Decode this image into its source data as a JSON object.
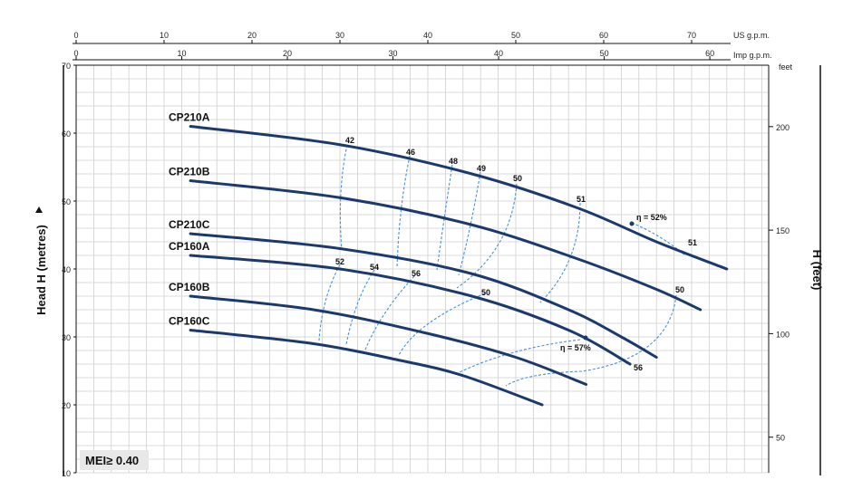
{
  "chart_data": {
    "type": "line",
    "ylabel_left": "Head H (metres)",
    "ylabel_right": "H (feet)",
    "top_axis_1_unit": "US g.p.m.",
    "top_axis_2_unit": "Imp g.p.m.",
    "right_axis_unit": "feet",
    "mei_label": "MEI≥ 0.40",
    "ylim": [
      10,
      70
    ],
    "y_ticks": [
      10,
      20,
      30,
      40,
      50,
      60,
      70
    ],
    "us_gpm_lim": [
      0,
      80
    ],
    "us_gpm_ticks": [
      0,
      10,
      20,
      30,
      40,
      50,
      60,
      70
    ],
    "imp_gpm_lim": [
      0,
      66.6
    ],
    "imp_gpm_ticks": [
      0,
      10,
      20,
      30,
      40,
      50,
      60
    ],
    "feet_ticks": [
      50,
      100,
      150,
      200
    ],
    "series": [
      {
        "name": "CP210A",
        "x_us_gpm": [
          13,
          30,
          45,
          57,
          66,
          74
        ],
        "y": [
          61,
          58.3,
          54,
          49,
          44,
          40
        ]
      },
      {
        "name": "CP210B",
        "x_us_gpm": [
          13,
          30,
          45,
          57,
          66,
          71
        ],
        "y": [
          53,
          50.5,
          46.5,
          41.5,
          37,
          34
        ]
      },
      {
        "name": "CP210C",
        "x_us_gpm": [
          13,
          30,
          45,
          56,
          62,
          66
        ],
        "y": [
          45.2,
          43,
          39.3,
          34,
          30,
          27
        ]
      },
      {
        "name": "CP160A",
        "x_us_gpm": [
          13,
          30,
          45,
          56,
          63
        ],
        "y": [
          42,
          40,
          36,
          31,
          26
        ]
      },
      {
        "name": "CP160B",
        "x_us_gpm": [
          13,
          27,
          40,
          50,
          58
        ],
        "y": [
          36,
          34,
          30.5,
          27,
          23
        ]
      },
      {
        "name": "CP160C",
        "x_us_gpm": [
          13,
          27,
          37,
          44,
          53
        ],
        "y": [
          31,
          29,
          26.5,
          24.3,
          20
        ]
      }
    ],
    "efficiency_labels": [
      "42",
      "46",
      "48",
      "49",
      "50",
      "51",
      "η = 52%",
      "51",
      "50",
      "52",
      "54",
      "56",
      "50",
      "η = 57%",
      "56"
    ]
  }
}
